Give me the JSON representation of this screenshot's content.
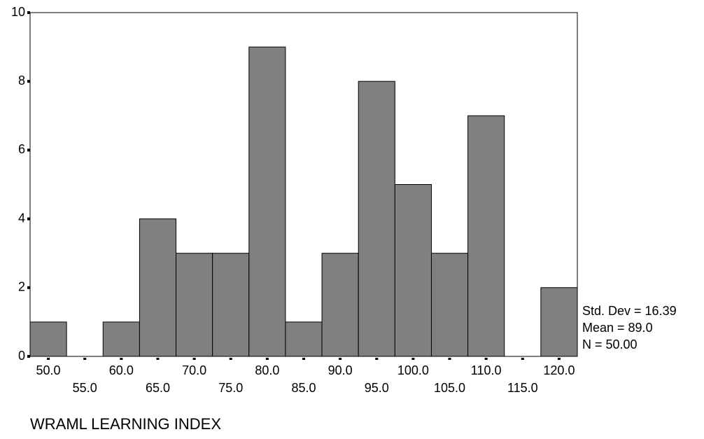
{
  "chart_data": {
    "type": "histogram",
    "x_label": "WRAML LEARNING INDEX",
    "bins": [
      47.5,
      52.5,
      57.5,
      62.5,
      67.5,
      72.5,
      77.5,
      82.5,
      87.5,
      92.5,
      97.5,
      102.5,
      107.5,
      112.5,
      117.5,
      122.5
    ],
    "values": [
      1,
      0,
      1,
      4,
      3,
      3,
      9,
      1,
      3,
      8,
      5,
      3,
      7,
      0,
      2
    ],
    "color": "#808080",
    "xlim": [
      47.5,
      122.5
    ],
    "xticks": [
      {
        "value": 50,
        "label": "50.0"
      },
      {
        "value": 55,
        "label": "55.0"
      },
      {
        "value": 60,
        "label": "60.0"
      },
      {
        "value": 65,
        "label": "65.0"
      },
      {
        "value": 70,
        "label": "70.0"
      },
      {
        "value": 75,
        "label": "75.0"
      },
      {
        "value": 80,
        "label": "80.0"
      },
      {
        "value": 85,
        "label": "85.0"
      },
      {
        "value": 90,
        "label": "90.0"
      },
      {
        "value": 95,
        "label": "95.0"
      },
      {
        "value": 100,
        "label": "100.0"
      },
      {
        "value": 105,
        "label": "105.0"
      },
      {
        "value": 110,
        "label": "110.0"
      },
      {
        "value": 115,
        "label": "115.0"
      },
      {
        "value": 120,
        "label": "120.0"
      }
    ],
    "ylim": [
      0,
      10
    ],
    "yticks": [
      0,
      2,
      4,
      6,
      8,
      10
    ],
    "annotations": [
      "Std. Dev = 16.39",
      "Mean = 89.0",
      "N = 50.00"
    ]
  }
}
